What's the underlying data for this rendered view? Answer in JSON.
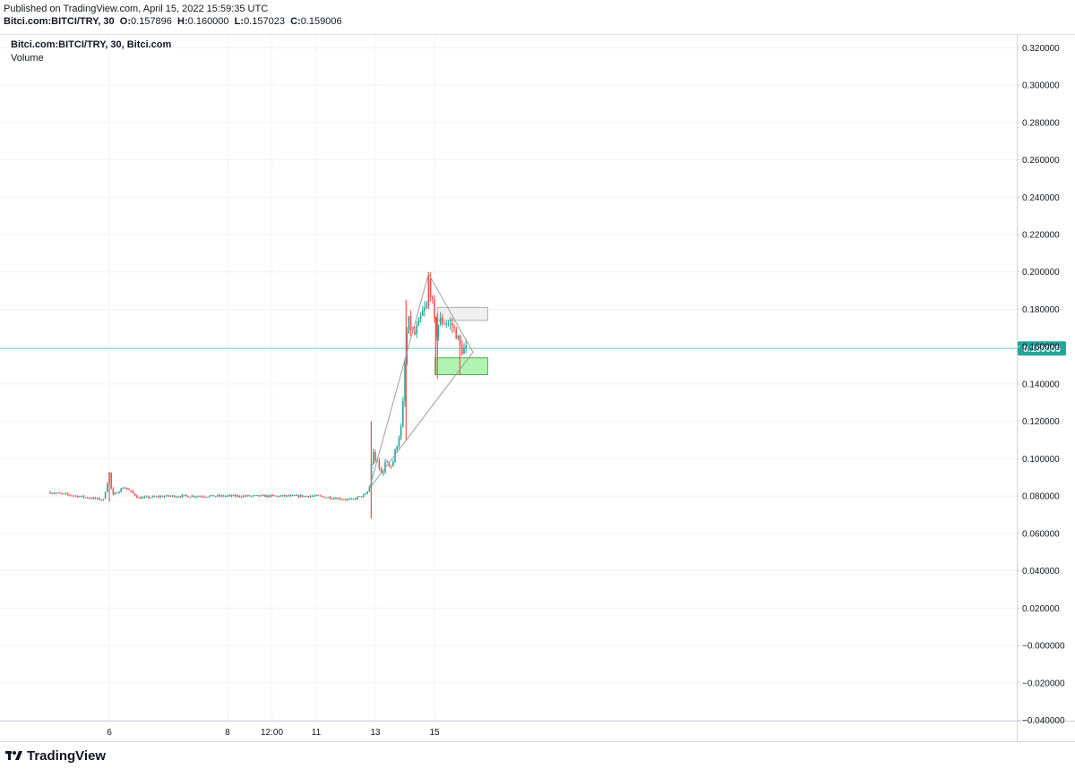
{
  "header": {
    "published": "Published on TradingView.com, April 15, 2022 15:59:35 UTC",
    "symbol": "Bitci.com:BITCI/TRY, 30",
    "o_label": "O:",
    "o": "0.157896",
    "h_label": "H:",
    "h": "0.160000",
    "l_label": "L:",
    "l": "0.157023",
    "c_label": "C:",
    "c": "0.159006"
  },
  "legend": {
    "title": "Bitci.com:BITCI/TRY, 30, Bitci.com",
    "volume": "Volume"
  },
  "footer": {
    "brand": "TradingView"
  },
  "chart_data": {
    "type": "candlestick",
    "symbol": "BITCI/TRY",
    "interval": "30",
    "exchange": "Bitci.com",
    "ylim": [
      -0.046,
      0.324
    ],
    "y_ticks": [
      "0.320000",
      "0.300000",
      "0.280000",
      "0.260000",
      "0.240000",
      "0.220000",
      "0.200000",
      "0.180000",
      "0.160000",
      "0.140000",
      "0.120000",
      "0.100000",
      "0.080000",
      "0.060000",
      "0.040000",
      "0.020000",
      "−0.000000",
      "−0.020000",
      "−0.040000"
    ],
    "x_ticks": [
      {
        "label": "6",
        "t": 1.0
      },
      {
        "label": "8",
        "t": 3.0
      },
      {
        "label": "12:00",
        "t": 3.75
      },
      {
        "label": "11",
        "t": 4.5
      },
      {
        "label": "13",
        "t": 5.5
      },
      {
        "label": "15",
        "t": 6.5
      }
    ],
    "last_price": "0.159006",
    "colors": {
      "up": "#26a69a",
      "down": "#ef5350",
      "last": "#26a69a",
      "grid": "#f0f3fa",
      "drawing": "#9e9e9e"
    },
    "key_points": [
      {
        "t": 0.0,
        "v": 0.082
      },
      {
        "t": 0.9,
        "v": 0.078
      },
      {
        "t": 1.0,
        "v": 0.092
      },
      {
        "t": 1.05,
        "v": 0.08
      },
      {
        "t": 1.25,
        "v": 0.085
      },
      {
        "t": 1.5,
        "v": 0.079
      },
      {
        "t": 2.0,
        "v": 0.08
      },
      {
        "t": 3.0,
        "v": 0.08
      },
      {
        "t": 4.0,
        "v": 0.08
      },
      {
        "t": 4.5,
        "v": 0.08
      },
      {
        "t": 5.1,
        "v": 0.078
      },
      {
        "t": 5.35,
        "v": 0.081
      },
      {
        "t": 5.4,
        "v": 0.085
      },
      {
        "t": 5.45,
        "v": 0.104
      },
      {
        "t": 5.6,
        "v": 0.092
      },
      {
        "t": 5.7,
        "v": 0.099
      },
      {
        "t": 5.78,
        "v": 0.096
      },
      {
        "t": 5.88,
        "v": 0.11
      },
      {
        "t": 5.95,
        "v": 0.118
      },
      {
        "t": 6.0,
        "v": 0.15
      },
      {
        "t": 6.05,
        "v": 0.175
      },
      {
        "t": 6.15,
        "v": 0.165
      },
      {
        "t": 6.3,
        "v": 0.178
      },
      {
        "t": 6.38,
        "v": 0.182
      },
      {
        "t": 6.4,
        "v": 0.196
      },
      {
        "t": 6.48,
        "v": 0.18
      },
      {
        "t": 6.52,
        "v": 0.165
      },
      {
        "t": 6.58,
        "v": 0.174
      },
      {
        "t": 6.7,
        "v": 0.173
      },
      {
        "t": 6.8,
        "v": 0.171
      },
      {
        "t": 6.88,
        "v": 0.166
      },
      {
        "t": 6.95,
        "v": 0.158
      },
      {
        "t": 7.05,
        "v": 0.159
      }
    ],
    "spikes": [
      {
        "t": 1.0,
        "high": 0.093,
        "low": 0.077
      },
      {
        "t": 5.43,
        "high": 0.12,
        "low": 0.068
      },
      {
        "t": 6.02,
        "high": 0.185,
        "low": 0.11
      },
      {
        "t": 6.4,
        "high": 0.2,
        "low": 0.18
      },
      {
        "t": 6.52,
        "high": 0.176,
        "low": 0.145
      },
      {
        "t": 6.55,
        "high": 0.178,
        "low": 0.143
      },
      {
        "t": 6.93,
        "high": 0.166,
        "low": 0.145
      }
    ],
    "drawings": {
      "triangle": [
        {
          "t": 5.4,
          "v": 0.084
        },
        {
          "t": 6.4,
          "v": 0.199
        },
        {
          "t": 7.15,
          "v": 0.157
        }
      ],
      "resistance_zone": {
        "t0": 6.55,
        "t1": 7.4,
        "v0": 0.174,
        "v1": 0.181,
        "color": "#e0e0e0"
      },
      "support_zone": {
        "t0": 6.51,
        "t1": 7.4,
        "v0": 0.145,
        "v1": 0.154,
        "color": "#90ee90"
      }
    }
  }
}
